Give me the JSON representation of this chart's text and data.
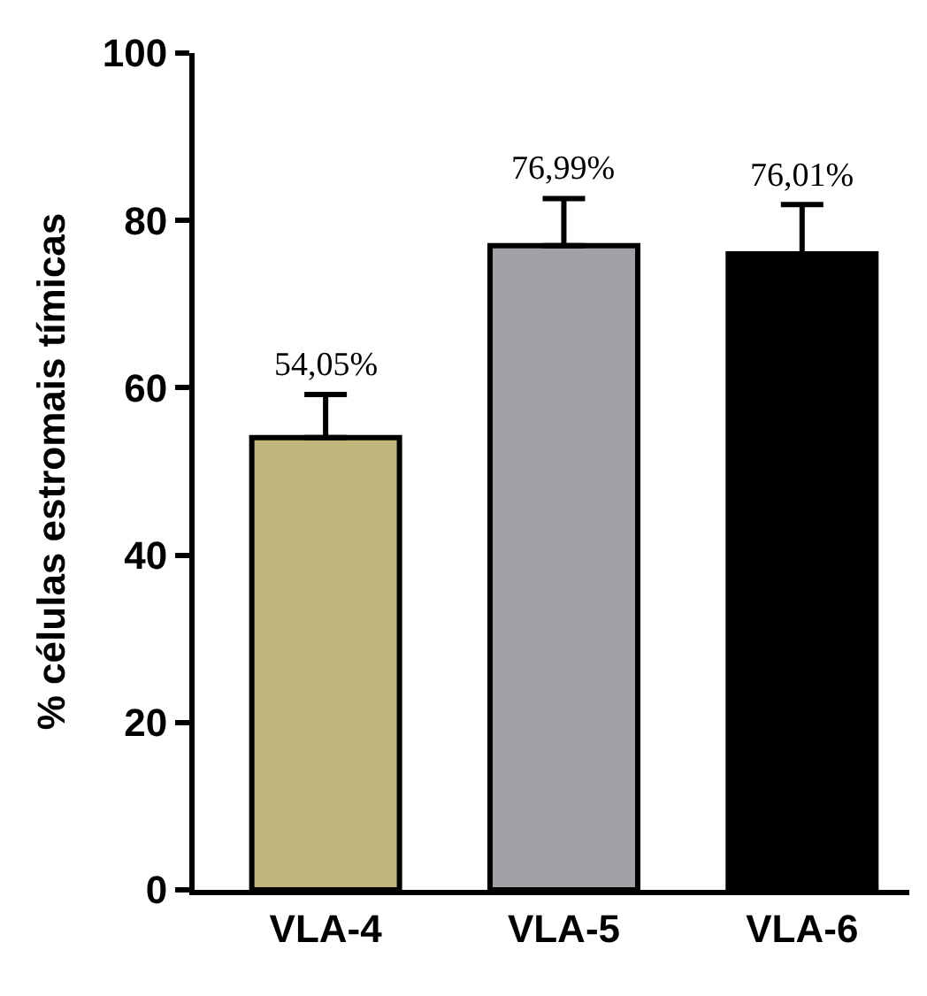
{
  "chart_data": {
    "type": "bar",
    "ylabel": "% células estromais tímicas",
    "categories": [
      "VLA-4",
      "VLA-5",
      "VLA-6"
    ],
    "values": [
      54.05,
      76.99,
      76.01
    ],
    "colors": [
      "#c0b57b",
      "#a2a1a6",
      "#000000"
    ],
    "errors": [
      [
        54.05,
        59.2
      ],
      [
        76.99,
        82.6
      ],
      [
        76.01,
        81.9
      ]
    ],
    "value_labels": [
      "54,05%",
      "76,99%",
      "76,01%"
    ],
    "ylim": [
      0,
      100
    ],
    "yticks": [
      0,
      20,
      40,
      60,
      80,
      100
    ]
  }
}
